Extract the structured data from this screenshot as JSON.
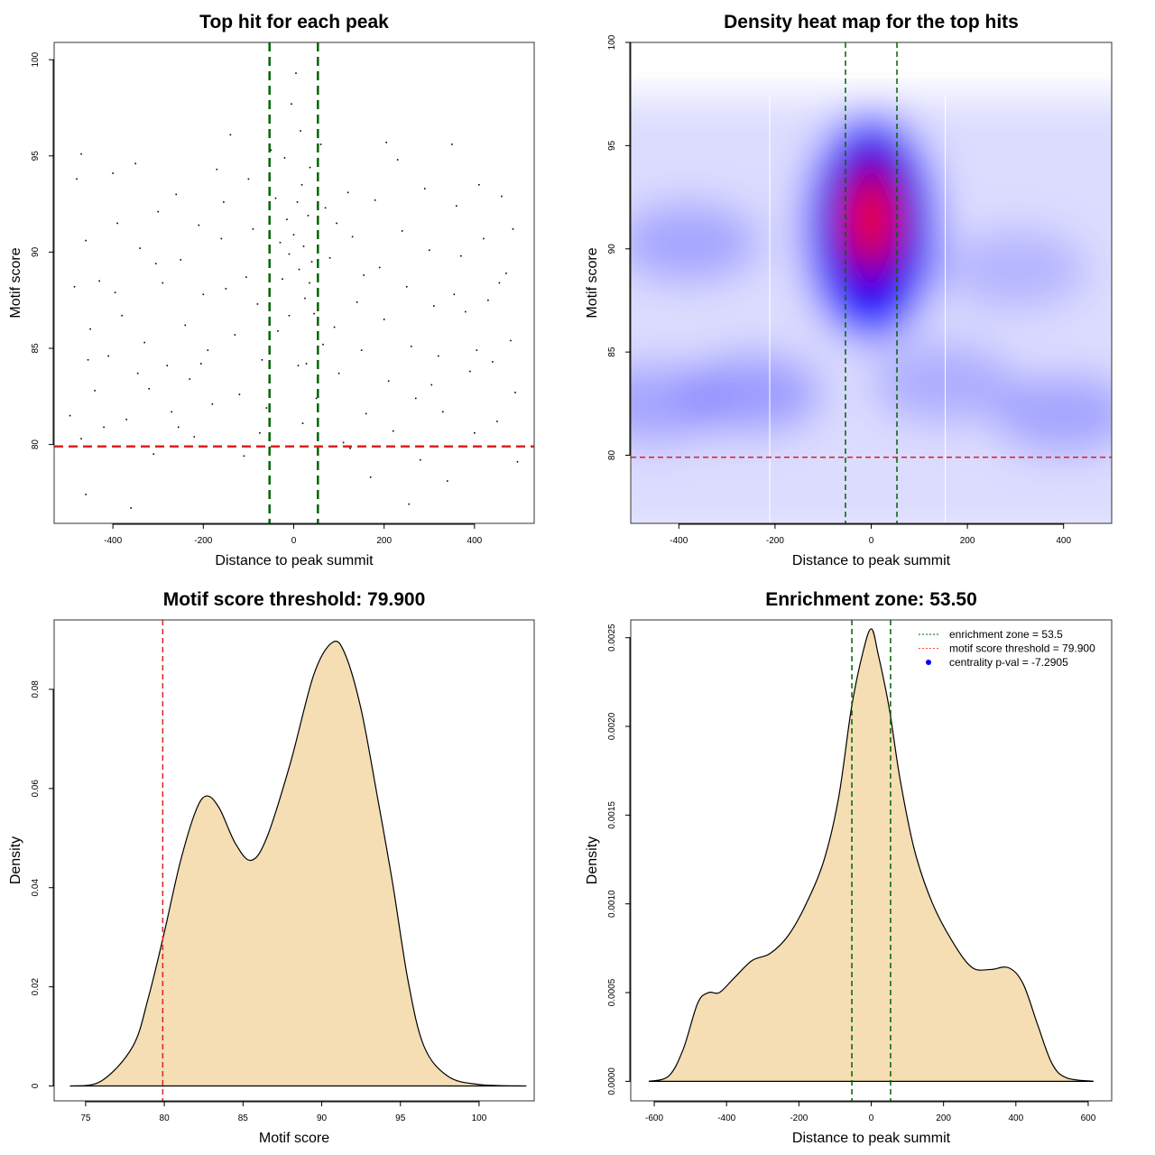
{
  "chart_data": [
    {
      "type": "scatter",
      "title": "Top hit for each peak",
      "xlabel": "Distance to peak summit",
      "ylabel": "Motif score",
      "xlim": [
        -530,
        532
      ],
      "ylim": [
        75.9,
        100.9
      ],
      "xticks": [
        -400,
        -200,
        0,
        200,
        400
      ],
      "yticks": [
        80,
        85,
        90,
        95,
        100
      ],
      "vlines": [
        -53.5,
        53.5
      ],
      "vline_color": "#006400",
      "hline": 79.9,
      "hline_color": "#dd2222",
      "point_color": "#000000",
      "points": [
        [
          -480,
          93.8
        ],
        [
          -470,
          95.1
        ],
        [
          -460,
          90.6
        ],
        [
          -450,
          86
        ],
        [
          -440,
          82.8
        ],
        [
          -470,
          80.3
        ],
        [
          -460,
          77.4
        ],
        [
          -430,
          88.5
        ],
        [
          -410,
          84.6
        ],
        [
          -400,
          94.1
        ],
        [
          -390,
          91.5
        ],
        [
          -380,
          86.7
        ],
        [
          -370,
          81.3
        ],
        [
          -360,
          76.7
        ],
        [
          -350,
          94.6
        ],
        [
          -340,
          90.2
        ],
        [
          -330,
          85.3
        ],
        [
          -320,
          82.9
        ],
        [
          -310,
          79.5
        ],
        [
          -300,
          92.1
        ],
        [
          -290,
          88.4
        ],
        [
          -280,
          84.1
        ],
        [
          -270,
          81.7
        ],
        [
          -260,
          93
        ],
        [
          -250,
          89.6
        ],
        [
          -240,
          86.2
        ],
        [
          -230,
          83.4
        ],
        [
          -220,
          80.4
        ],
        [
          -210,
          91.4
        ],
        [
          -200,
          87.8
        ],
        [
          -190,
          84.9
        ],
        [
          -180,
          82.1
        ],
        [
          -170,
          94.3
        ],
        [
          -160,
          90.7
        ],
        [
          -150,
          88.1
        ],
        [
          -140,
          96.1
        ],
        [
          -130,
          85.7
        ],
        [
          -120,
          82.6
        ],
        [
          -110,
          79.4
        ],
        [
          -100,
          93.8
        ],
        [
          -90,
          91.2
        ],
        [
          -80,
          87.3
        ],
        [
          -70,
          84.4
        ],
        [
          -60,
          81.9
        ],
        [
          -50,
          95.3
        ],
        [
          -40,
          92.8
        ],
        [
          -30,
          90.5
        ],
        [
          -25,
          88.6
        ],
        [
          -20,
          94.9
        ],
        [
          -15,
          91.7
        ],
        [
          -10,
          89.9
        ],
        [
          -5,
          97.7
        ],
        [
          0,
          90.9
        ],
        [
          5,
          99.3
        ],
        [
          8,
          92.6
        ],
        [
          12,
          89.1
        ],
        [
          15,
          96.3
        ],
        [
          18,
          93.5
        ],
        [
          22,
          90.3
        ],
        [
          25,
          87.6
        ],
        [
          28,
          84.2
        ],
        [
          32,
          91.9
        ],
        [
          36,
          94.4
        ],
        [
          40,
          89.5
        ],
        [
          45,
          86.8
        ],
        [
          50,
          82.4
        ],
        [
          60,
          95.6
        ],
        [
          70,
          92.3
        ],
        [
          80,
          89.7
        ],
        [
          90,
          86.1
        ],
        [
          100,
          83.7
        ],
        [
          110,
          80.1
        ],
        [
          120,
          93.1
        ],
        [
          130,
          90.8
        ],
        [
          140,
          87.4
        ],
        [
          150,
          84.9
        ],
        [
          160,
          81.6
        ],
        [
          170,
          78.3
        ],
        [
          180,
          92.7
        ],
        [
          190,
          89.2
        ],
        [
          200,
          86.5
        ],
        [
          210,
          83.3
        ],
        [
          220,
          80.7
        ],
        [
          230,
          94.8
        ],
        [
          240,
          91.1
        ],
        [
          250,
          88.2
        ],
        [
          260,
          85.1
        ],
        [
          270,
          82.4
        ],
        [
          280,
          79.2
        ],
        [
          290,
          93.3
        ],
        [
          300,
          90.1
        ],
        [
          310,
          87.2
        ],
        [
          320,
          84.6
        ],
        [
          330,
          81.7
        ],
        [
          340,
          78.1
        ],
        [
          350,
          95.6
        ],
        [
          360,
          92.4
        ],
        [
          370,
          89.8
        ],
        [
          380,
          86.9
        ],
        [
          390,
          83.8
        ],
        [
          400,
          80.6
        ],
        [
          410,
          93.5
        ],
        [
          420,
          90.7
        ],
        [
          430,
          87.5
        ],
        [
          440,
          84.3
        ],
        [
          450,
          81.2
        ],
        [
          460,
          92.9
        ],
        [
          470,
          88.9
        ],
        [
          480,
          85.4
        ],
        [
          490,
          82.7
        ],
        [
          495,
          79.1
        ],
        [
          -495,
          81.5
        ],
        [
          -485,
          88.2
        ],
        [
          -455,
          84.4
        ],
        [
          -420,
          80.9
        ],
        [
          -395,
          87.9
        ],
        [
          -345,
          83.7
        ],
        [
          -305,
          89.4
        ],
        [
          -255,
          80.9
        ],
        [
          -205,
          84.2
        ],
        [
          -155,
          92.6
        ],
        [
          -105,
          88.7
        ],
        [
          -75,
          80.6
        ],
        [
          -35,
          85.9
        ],
        [
          -10,
          86.7
        ],
        [
          10,
          84.1
        ],
        [
          20,
          81.1
        ],
        [
          35,
          88.4
        ],
        [
          65,
          85.2
        ],
        [
          95,
          91.5
        ],
        [
          125,
          79.8
        ],
        [
          155,
          88.8
        ],
        [
          205,
          95.7
        ],
        [
          255,
          76.9
        ],
        [
          305,
          83.1
        ],
        [
          355,
          87.8
        ],
        [
          405,
          84.9
        ],
        [
          455,
          88.4
        ],
        [
          485,
          91.2
        ]
      ]
    },
    {
      "type": "heatmap",
      "title": "Density heat map for the top hits",
      "xlabel": "Distance to peak summit",
      "ylabel": "Motif score",
      "xlim": [
        -500,
        500
      ],
      "ylim": [
        76.7,
        100
      ],
      "xticks": [
        -400,
        -200,
        0,
        200,
        400
      ],
      "yticks": [
        80,
        85,
        90,
        95,
        100
      ],
      "vlines": [
        -53.5,
        53.5
      ],
      "vline_color": "#006400",
      "hline": 79.9,
      "hline_color": "#dd2222",
      "color_scale": [
        "#ffffff",
        "#0000ff",
        "#ff0000"
      ],
      "density_peaks": [
        {
          "x": 0,
          "y": 91,
          "level": 1.0
        },
        {
          "x": -380,
          "y": 90.3,
          "level": 0.35
        },
        {
          "x": -250,
          "y": 83,
          "level": 0.4
        },
        {
          "x": -450,
          "y": 82.5,
          "level": 0.35
        },
        {
          "x": 150,
          "y": 83.5,
          "level": 0.3
        },
        {
          "x": 400,
          "y": 82,
          "level": 0.35
        },
        {
          "x": 300,
          "y": 89,
          "level": 0.25
        }
      ]
    },
    {
      "type": "area",
      "title": "Motif score threshold: 79.900",
      "xlabel": "Motif score",
      "ylabel": "Density",
      "xlim": [
        73,
        103.5
      ],
      "ylim": [
        -0.003,
        0.094
      ],
      "xticks": [
        75,
        80,
        85,
        90,
        95,
        100
      ],
      "yticks": [
        0,
        0.02,
        0.04,
        0.06,
        0.08
      ],
      "vline": 79.9,
      "vline_color": "#dd2222",
      "fill": "#f5deb3",
      "x": [
        74,
        76,
        78,
        79,
        80,
        81,
        82,
        82.7,
        83.5,
        84.5,
        85.5,
        86.5,
        88,
        89.5,
        90.7,
        91.5,
        92.5,
        93.5,
        94.5,
        95.5,
        96.5,
        98,
        100,
        103
      ],
      "y": [
        0,
        0.001,
        0.008,
        0.018,
        0.031,
        0.045,
        0.0555,
        0.0585,
        0.056,
        0.049,
        0.0455,
        0.05,
        0.065,
        0.083,
        0.0895,
        0.087,
        0.076,
        0.059,
        0.041,
        0.021,
        0.008,
        0.002,
        0.0003,
        0
      ]
    },
    {
      "type": "area",
      "title": "Enrichment zone: 53.50",
      "xlabel": "Distance to peak summit",
      "ylabel": "Density",
      "xlim": [
        -665,
        665
      ],
      "ylim": [
        -0.00011,
        0.0026
      ],
      "xticks": [
        -600,
        -400,
        -200,
        0,
        200,
        400,
        600
      ],
      "yticks": [
        0,
        0.0005,
        0.001,
        0.0015,
        0.002,
        0.0025
      ],
      "ytick_labels": [
        "0.0000",
        "0.0005",
        "0.0010",
        "0.0015",
        "0.0020",
        "0.0025"
      ],
      "vlines": [
        -53.5,
        53.5
      ],
      "vline_color": "#006400",
      "fill": "#f5deb3",
      "legend": [
        {
          "label": "enrichment zone = 53.5",
          "color": "#006400",
          "style": "dotted"
        },
        {
          "label": "motif score threshold = 79.900",
          "color": "#ff4444",
          "style": "dotted"
        },
        {
          "label": "centrality p-val = -7.2905",
          "color": "#0000ff",
          "style": "point"
        }
      ],
      "legend_position": "top-right",
      "x": [
        -615,
        -560,
        -520,
        -480,
        -450,
        -420,
        -380,
        -330,
        -280,
        -230,
        -180,
        -130,
        -90,
        -55,
        -25,
        0,
        20,
        50,
        80,
        120,
        170,
        230,
        280,
        330,
        380,
        420,
        460,
        500,
        540,
        615
      ],
      "y": [
        0,
        3e-05,
        0.00018,
        0.00044,
        0.0005,
        0.0005,
        0.00058,
        0.00068,
        0.00072,
        0.00082,
        0.001,
        0.00125,
        0.0016,
        0.0021,
        0.0024,
        0.00255,
        0.0024,
        0.0021,
        0.0017,
        0.0013,
        0.001,
        0.00077,
        0.00064,
        0.00063,
        0.00064,
        0.00055,
        0.00032,
        0.0001,
        2e-05,
        0
      ]
    }
  ]
}
